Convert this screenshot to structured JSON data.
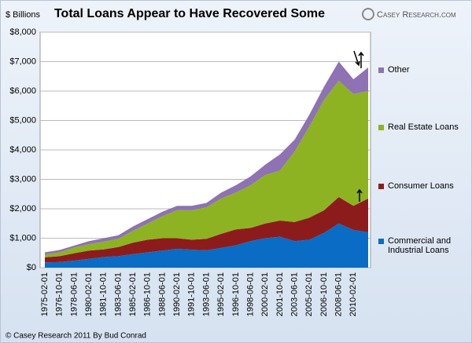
{
  "chart_data": {
    "type": "stacked_area",
    "title": "Total Loans Appear to Have Recovered Some",
    "y_label": "$ Billions",
    "source": "© Casey Research 2011 By Bud Conrad",
    "logo": "Casey Research.com",
    "categories": [
      "1975-02-01",
      "1976-10-01",
      "1978-06-01",
      "1980-02-01",
      "1981-10-01",
      "1983-06-01",
      "1985-02-01",
      "1986-10-01",
      "1988-06-01",
      "1990-02-01",
      "1991-10-01",
      "1993-06-01",
      "1995-02-01",
      "1996-10-01",
      "1998-06-01",
      "2000-02-01",
      "2001-10-01",
      "2003-06-01",
      "2005-02-01",
      "2006-10-01",
      "2008-06-01",
      "2010-02-01",
      null
    ],
    "series": [
      {
        "name": "Commercial and Industrial Loans",
        "color": "#0a6cc4",
        "values": [
          180,
          190,
          240,
          300,
          360,
          390,
          460,
          520,
          580,
          640,
          610,
          590,
          670,
          760,
          900,
          1000,
          1050,
          900,
          950,
          1180,
          1500,
          1280,
          1200
        ]
      },
      {
        "name": "Consumer Loans",
        "color": "#8c1c1c",
        "values": [
          170,
          200,
          250,
          280,
          260,
          310,
          390,
          430,
          420,
          360,
          340,
          390,
          480,
          540,
          450,
          500,
          550,
          650,
          750,
          770,
          900,
          820,
          1150
        ]
      },
      {
        "name": "Real Estate Loans",
        "color": "#8db322",
        "values": [
          100,
          130,
          190,
          220,
          260,
          280,
          400,
          550,
          750,
          950,
          1000,
          1070,
          1200,
          1250,
          1450,
          1650,
          1700,
          2400,
          3100,
          3750,
          3950,
          3800,
          3650
        ]
      },
      {
        "name": "Other",
        "color": "#8e72b3",
        "values": [
          70,
          80,
          70,
          100,
          120,
          120,
          150,
          150,
          150,
          150,
          150,
          150,
          200,
          250,
          300,
          350,
          550,
          400,
          400,
          450,
          650,
          500,
          800
        ]
      }
    ],
    "ylim": [
      0,
      8000
    ],
    "yticks": [
      {
        "value": 0,
        "label": "$0"
      },
      {
        "value": 1000,
        "label": "$1,000"
      },
      {
        "value": 2000,
        "label": "$2,000"
      },
      {
        "value": 3000,
        "label": "$3,000"
      },
      {
        "value": 4000,
        "label": "$4,000"
      },
      {
        "value": 5000,
        "label": "$5,000"
      },
      {
        "value": 6000,
        "label": "$6,000"
      },
      {
        "value": 7000,
        "label": "$7,000"
      },
      {
        "value": 8000,
        "label": "$8,000"
      }
    ],
    "grid": true
  }
}
